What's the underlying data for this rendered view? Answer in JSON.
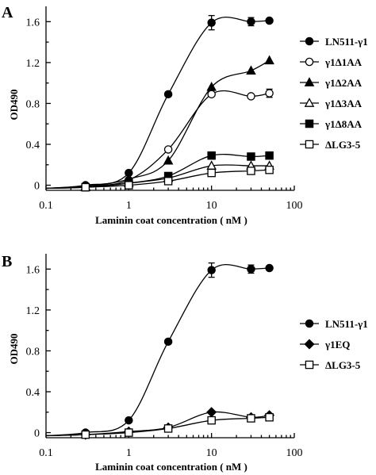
{
  "chart_data": [
    {
      "panel": "A",
      "type": "line",
      "xscale": "log",
      "xlim": [
        0.1,
        100
      ],
      "ylim": [
        -0.05,
        1.75
      ],
      "x_ticks": [
        0.1,
        1,
        10,
        100
      ],
      "x_tick_labels": [
        "0.1",
        "1",
        "10",
        "100"
      ],
      "y_ticks": [
        0,
        0.4,
        0.8,
        1.2,
        1.6
      ],
      "y_tick_labels": [
        "0",
        "0.4",
        "0.8",
        "1.2",
        "1.6"
      ],
      "xlabel": "Laminin coat concentration ( nM )",
      "ylabel": "OD490",
      "legend_position": "right",
      "x": [
        0.1,
        0.3,
        1,
        3,
        10,
        30,
        50
      ],
      "series": [
        {
          "name": "LN511-γ1",
          "marker": "filled-circle",
          "values": [
            -0.03,
            0.0,
            0.12,
            0.89,
            1.59,
            1.6,
            1.61
          ],
          "errors": [
            0,
            0,
            0,
            0,
            0.07,
            0.04,
            0
          ]
        },
        {
          "name": "γ1Δ1AA",
          "marker": "open-circle",
          "values": [
            -0.03,
            -0.01,
            0.05,
            0.35,
            0.89,
            0.87,
            0.9
          ],
          "errors": [
            0,
            0,
            0,
            0,
            0,
            0,
            0.04
          ]
        },
        {
          "name": "γ1Δ2AA",
          "marker": "filled-triangle",
          "values": [
            -0.03,
            -0.01,
            0.06,
            0.24,
            0.96,
            1.12,
            1.22
          ],
          "errors": [
            0,
            0,
            0,
            0,
            0,
            0,
            0
          ]
        },
        {
          "name": "γ1Δ3AA",
          "marker": "open-triangle",
          "values": [
            -0.03,
            -0.02,
            0.02,
            0.07,
            0.19,
            0.19,
            0.19
          ],
          "errors": [
            0,
            0,
            0,
            0,
            0,
            0,
            0
          ]
        },
        {
          "name": "γ1Δ8AA",
          "marker": "filled-square",
          "values": [
            -0.03,
            -0.02,
            0.02,
            0.09,
            0.29,
            0.28,
            0.29
          ],
          "errors": [
            0,
            0,
            0,
            0,
            0,
            0,
            0
          ]
        },
        {
          "name": "ΔLG3-5",
          "marker": "open-square",
          "values": [
            -0.03,
            -0.02,
            0.0,
            0.04,
            0.12,
            0.14,
            0.15
          ],
          "errors": [
            0,
            0,
            0,
            0,
            0,
            0,
            0
          ]
        }
      ]
    },
    {
      "panel": "B",
      "type": "line",
      "xscale": "log",
      "xlim": [
        0.1,
        100
      ],
      "ylim": [
        -0.05,
        1.75
      ],
      "x_ticks": [
        0.1,
        1,
        10,
        100
      ],
      "x_tick_labels": [
        "0.1",
        "1",
        "10",
        "100"
      ],
      "y_ticks": [
        0,
        0.4,
        0.8,
        1.2,
        1.6
      ],
      "y_tick_labels": [
        "0",
        "0.4",
        "0.8",
        "1.2",
        "1.6"
      ],
      "xlabel": "Laminin coat concentration ( nM )",
      "ylabel": "OD490",
      "legend_position": "right",
      "x": [
        0.1,
        0.3,
        1,
        3,
        10,
        30,
        50
      ],
      "series": [
        {
          "name": "LN511-γ1",
          "marker": "filled-circle",
          "values": [
            -0.03,
            0.0,
            0.12,
            0.89,
            1.59,
            1.6,
            1.61
          ],
          "errors": [
            0,
            0,
            0,
            0,
            0.07,
            0.04,
            0
          ]
        },
        {
          "name": "γ1EQ",
          "marker": "filled-diamond",
          "values": [
            -0.03,
            -0.02,
            0.01,
            0.05,
            0.2,
            0.15,
            0.17
          ],
          "errors": [
            0,
            0,
            0,
            0,
            0,
            0,
            0
          ]
        },
        {
          "name": "ΔLG3-5",
          "marker": "open-square",
          "values": [
            -0.03,
            -0.02,
            0.0,
            0.04,
            0.12,
            0.14,
            0.15
          ],
          "errors": [
            0,
            0,
            0,
            0,
            0,
            0,
            0
          ]
        }
      ]
    }
  ]
}
